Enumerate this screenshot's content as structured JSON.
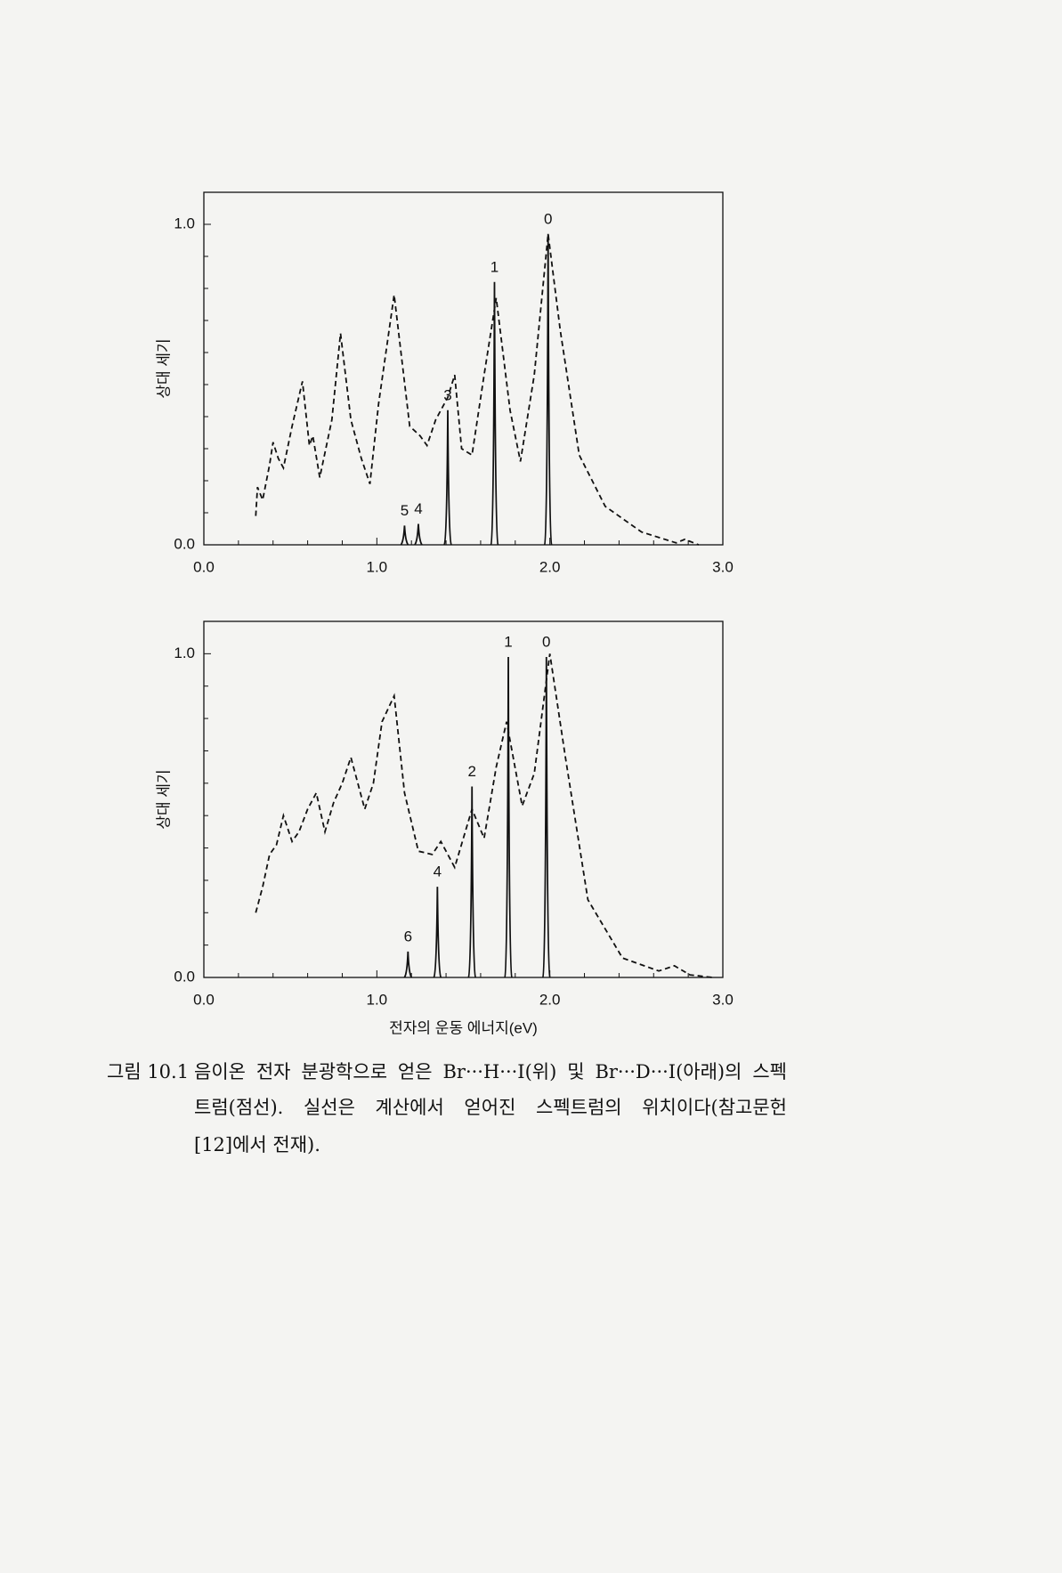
{
  "chart_data": [
    {
      "type": "line",
      "ylabel": "상대 세기",
      "xlim": [
        0,
        3
      ],
      "ylim": [
        0,
        1.1
      ],
      "xticks": [
        {
          "value": 0,
          "label": "0.0"
        },
        {
          "value": 1,
          "label": "1.0"
        },
        {
          "value": 2,
          "label": "2.0"
        },
        {
          "value": 3,
          "label": "3.0"
        }
      ],
      "yticks": [
        {
          "value": 0,
          "label": "0.0"
        },
        {
          "value": 1,
          "label": "1.0"
        }
      ],
      "series": [
        {
          "style": "dashed",
          "color": "#111111",
          "x": [
            0.3,
            0.31,
            0.34,
            0.38,
            0.4,
            0.43,
            0.46,
            0.51,
            0.57,
            0.61,
            0.63,
            0.67,
            0.74,
            0.79,
            0.85,
            0.91,
            0.96,
            1.01,
            1.1,
            1.19,
            1.25,
            1.29,
            1.34,
            1.41,
            1.45,
            1.49,
            1.55,
            1.62,
            1.69,
            1.77,
            1.83,
            1.91,
            1.99,
            2.06,
            2.17,
            2.32,
            2.53,
            2.73,
            2.78,
            2.86
          ],
          "values": [
            0.09,
            0.18,
            0.14,
            0.25,
            0.32,
            0.27,
            0.24,
            0.37,
            0.51,
            0.31,
            0.34,
            0.21,
            0.39,
            0.66,
            0.39,
            0.27,
            0.19,
            0.44,
            0.78,
            0.37,
            0.34,
            0.31,
            0.39,
            0.46,
            0.53,
            0.3,
            0.28,
            0.53,
            0.77,
            0.42,
            0.26,
            0.53,
            0.97,
            0.67,
            0.28,
            0.12,
            0.04,
            0.006,
            0.017,
            0
          ]
        },
        {
          "style": "peaks",
          "color": "#111111",
          "x": [
            1.16,
            1.24,
            1.41,
            1.68,
            1.99
          ],
          "values": [
            0.06,
            0.065,
            0.42,
            0.82,
            0.97
          ],
          "labels": [
            "5",
            "4",
            "3",
            "1",
            "0"
          ]
        }
      ]
    },
    {
      "type": "line",
      "ylabel": "상대 세기",
      "xlabel": "전자의 운동 에너지(eV)",
      "xlim": [
        0,
        3
      ],
      "ylim": [
        0,
        1.1
      ],
      "xticks": [
        {
          "value": 0,
          "label": "0.0"
        },
        {
          "value": 1,
          "label": "1.0"
        },
        {
          "value": 2,
          "label": "2.0"
        },
        {
          "value": 3,
          "label": "3.0"
        }
      ],
      "yticks": [
        {
          "value": 0,
          "label": "0.0"
        },
        {
          "value": 1,
          "label": "1.0"
        }
      ],
      "series": [
        {
          "style": "dashed",
          "color": "#111111",
          "x": [
            0.3,
            0.34,
            0.38,
            0.42,
            0.46,
            0.51,
            0.55,
            0.6,
            0.65,
            0.7,
            0.75,
            0.8,
            0.85,
            0.93,
            0.98,
            1.03,
            1.1,
            1.16,
            1.24,
            1.32,
            1.37,
            1.45,
            1.55,
            1.62,
            1.69,
            1.75,
            1.84,
            1.91,
            2.0,
            2.09,
            2.22,
            2.42,
            2.63,
            2.72,
            2.81,
            2.94
          ],
          "values": [
            0.2,
            0.28,
            0.38,
            0.41,
            0.5,
            0.42,
            0.45,
            0.52,
            0.57,
            0.45,
            0.54,
            0.6,
            0.68,
            0.52,
            0.6,
            0.79,
            0.87,
            0.57,
            0.39,
            0.38,
            0.42,
            0.34,
            0.52,
            0.43,
            0.65,
            0.79,
            0.53,
            0.63,
            1.0,
            0.68,
            0.24,
            0.06,
            0.02,
            0.036,
            0.008,
            0
          ]
        },
        {
          "style": "peaks",
          "color": "#111111",
          "x": [
            1.18,
            1.35,
            1.55,
            1.76,
            1.98
          ],
          "values": [
            0.08,
            0.28,
            0.59,
            0.99,
            0.99
          ],
          "labels": [
            "6",
            "4",
            "2",
            "1",
            "0"
          ]
        }
      ]
    }
  ],
  "caption": {
    "label": "그림 10.1",
    "lines": [
      "음이온 전자 분광학으로 얻은 Br···H···I(위) 및 Br···D···I(아래)의 스펙",
      "트럼(점선). 실선은 계산에서 얻어진 스펙트럼의 위치이다(참고문헌",
      "[12]에서 전재)."
    ]
  }
}
